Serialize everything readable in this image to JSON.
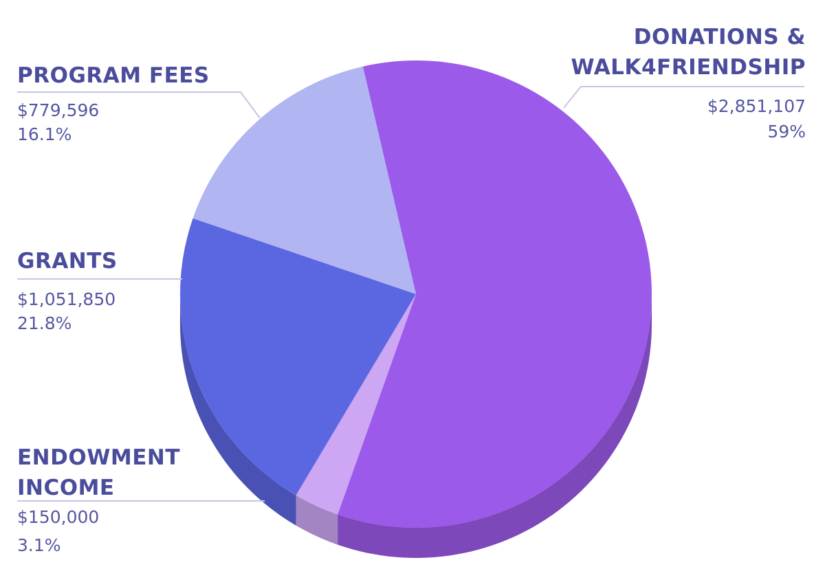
{
  "chart_data": {
    "type": "pie",
    "categories": [
      "DONATIONS & WALK4FRIENDSHIP",
      "ENDOWMENT INCOME",
      "GRANTS",
      "PROGRAM FEES"
    ],
    "values": [
      2851107,
      150000,
      1051850,
      779596
    ],
    "value_labels": [
      "$2,851,107",
      "$150,000",
      "$1,051,850",
      "$779,596"
    ],
    "percentages": [
      59,
      3.1,
      21.8,
      16.1
    ],
    "percentage_labels": [
      "59%",
      "3.1%",
      "21.8%",
      "16.1%"
    ],
    "colors": [
      "#9b5ae9",
      "#cda6f4",
      "#5b67e1",
      "#b1b5f1"
    ]
  }
}
